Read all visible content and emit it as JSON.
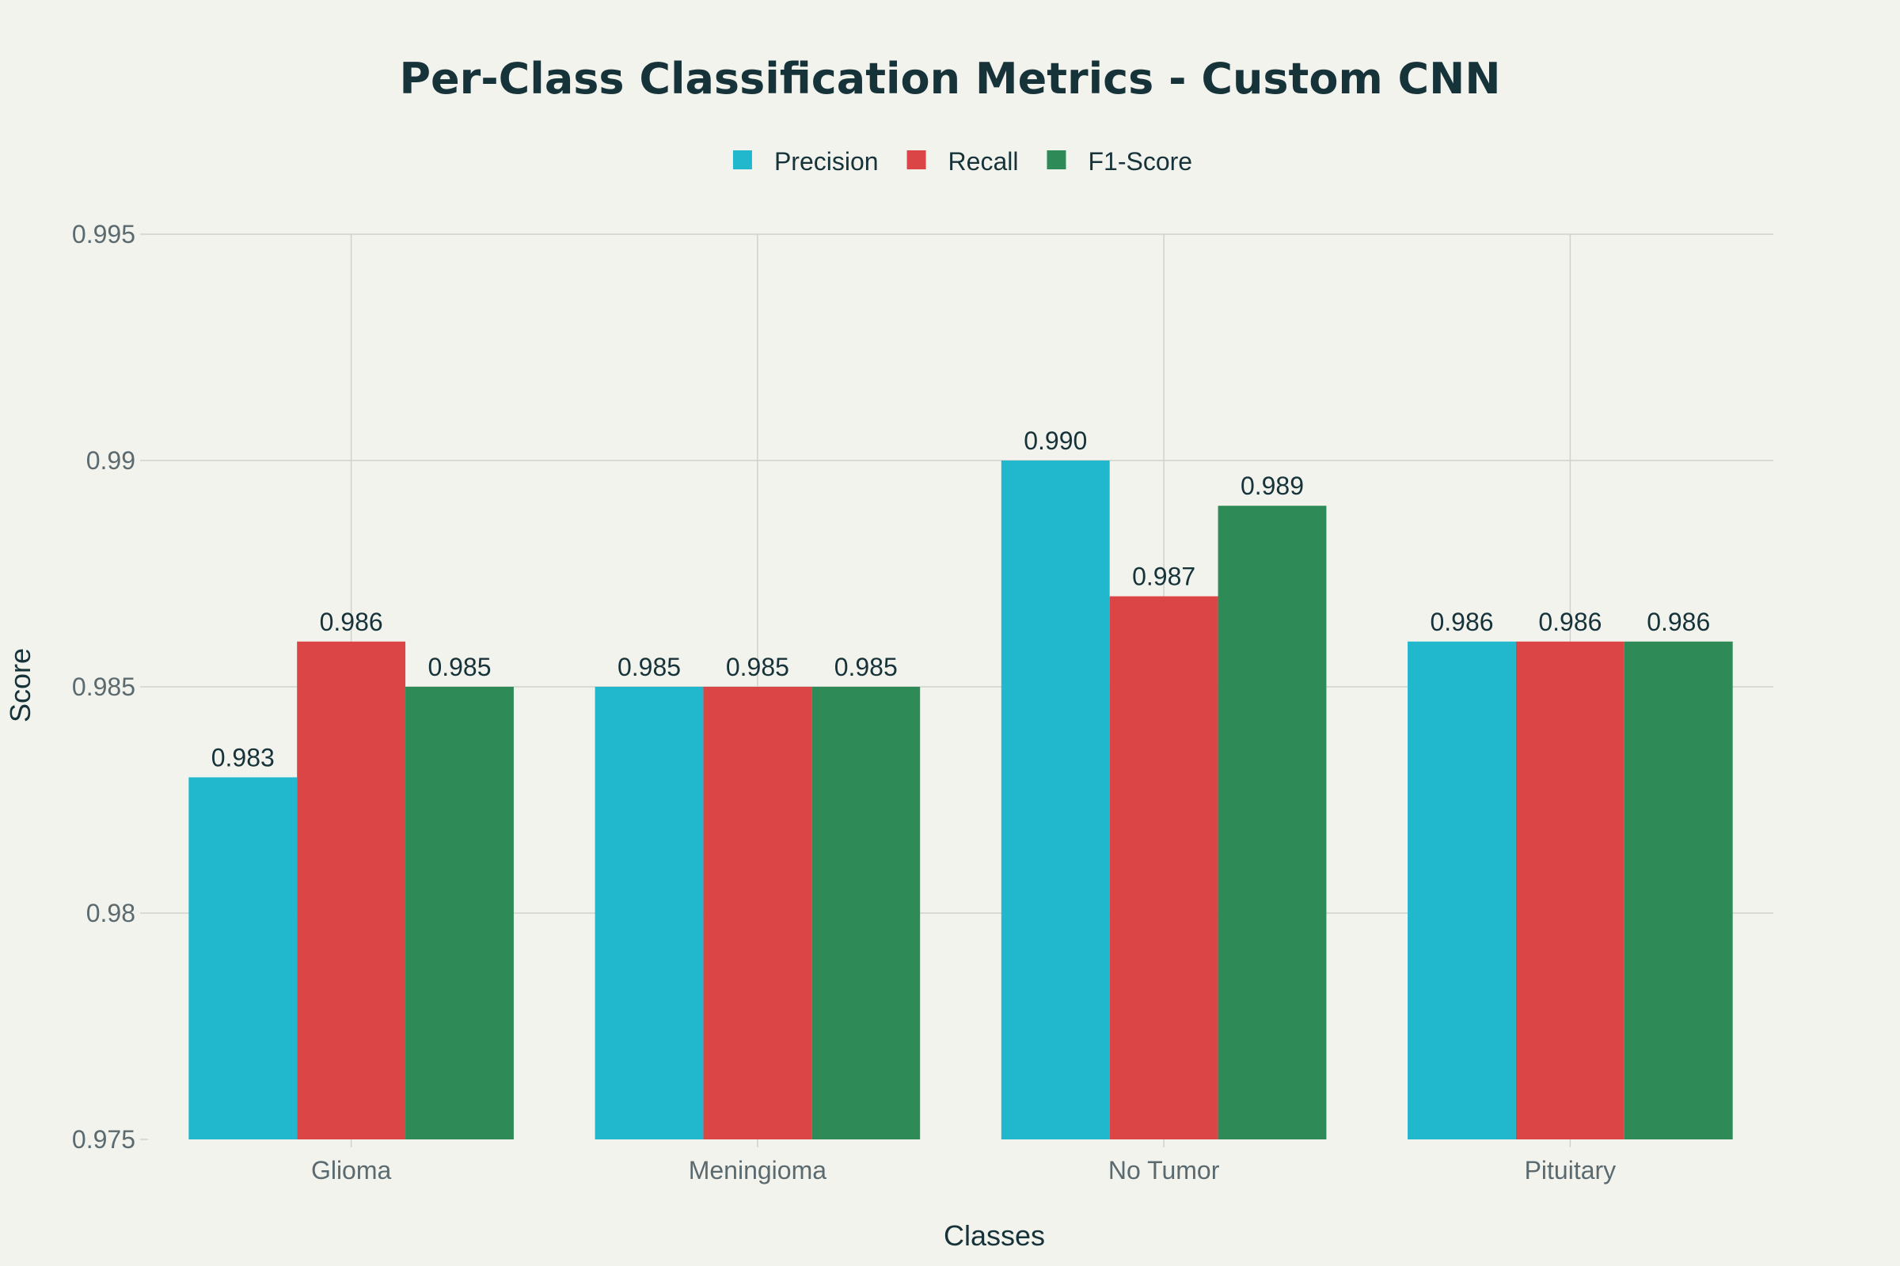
{
  "chart_data": {
    "type": "bar",
    "title": "Per-Class Classification Metrics - Custom CNN",
    "xlabel": "Classes",
    "ylabel": "Score",
    "categories": [
      "Glioma",
      "Meningioma",
      "No Tumor",
      "Pituitary"
    ],
    "series": [
      {
        "name": "Precision",
        "color": "#21b8cd",
        "values": [
          0.983,
          0.985,
          0.99,
          0.986
        ],
        "labels": [
          "0.983",
          "0.985",
          "0.990",
          "0.986"
        ]
      },
      {
        "name": "Recall",
        "color": "#db4545",
        "values": [
          0.986,
          0.985,
          0.987,
          0.986
        ],
        "labels": [
          "0.986",
          "0.985",
          "0.987",
          "0.986"
        ]
      },
      {
        "name": "F1-Score",
        "color": "#2e8b57",
        "values": [
          0.985,
          0.985,
          0.989,
          0.986
        ],
        "labels": [
          "0.985",
          "0.985",
          "0.989",
          "0.986"
        ]
      }
    ],
    "ylim": [
      0.975,
      0.995
    ],
    "yticks": [
      0.975,
      0.98,
      0.985,
      0.99,
      0.995
    ],
    "ytick_labels": [
      "0.975",
      "0.98",
      "0.985",
      "0.99",
      "0.995"
    ],
    "grid": true,
    "legend_position": "top-center"
  }
}
